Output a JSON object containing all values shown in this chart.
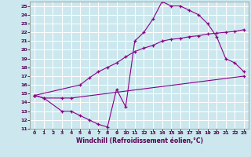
{
  "xlabel": "Windchill (Refroidissement éolien,°C)",
  "bg_color": "#cce8ee",
  "grid_color": "#ffffff",
  "line_color": "#880088",
  "xlim": [
    -0.5,
    23.5
  ],
  "ylim": [
    11,
    25.5
  ],
  "xticks": [
    0,
    1,
    2,
    3,
    4,
    5,
    6,
    7,
    8,
    9,
    10,
    11,
    12,
    13,
    14,
    15,
    16,
    17,
    18,
    19,
    20,
    21,
    22,
    23
  ],
  "yticks": [
    11,
    12,
    13,
    14,
    15,
    16,
    17,
    18,
    19,
    20,
    21,
    22,
    23,
    24,
    25
  ],
  "line1_x": [
    0,
    1,
    3,
    4,
    5,
    6,
    7,
    8,
    9,
    10,
    11,
    12,
    13,
    14,
    15,
    16,
    17,
    18,
    19,
    20,
    21,
    22,
    23
  ],
  "line1_y": [
    14.8,
    14.5,
    13.0,
    13.0,
    12.5,
    12.0,
    11.5,
    11.2,
    15.5,
    13.5,
    21.0,
    22.0,
    23.5,
    25.5,
    25.0,
    25.0,
    24.5,
    24.0,
    23.0,
    21.5,
    19.0,
    18.5,
    17.5
  ],
  "line2_x": [
    0,
    5,
    6,
    7,
    8,
    9,
    10,
    11,
    12,
    13,
    14,
    15,
    16,
    17,
    18,
    19,
    20,
    21,
    22,
    23
  ],
  "line2_y": [
    14.8,
    16.0,
    16.8,
    17.5,
    18.0,
    18.5,
    19.2,
    19.8,
    20.2,
    20.5,
    21.0,
    21.2,
    21.3,
    21.5,
    21.6,
    21.8,
    21.9,
    22.0,
    22.1,
    22.3
  ],
  "line3_x": [
    0,
    1,
    3,
    4,
    23
  ],
  "line3_y": [
    14.8,
    14.5,
    14.5,
    14.5,
    17.0
  ]
}
